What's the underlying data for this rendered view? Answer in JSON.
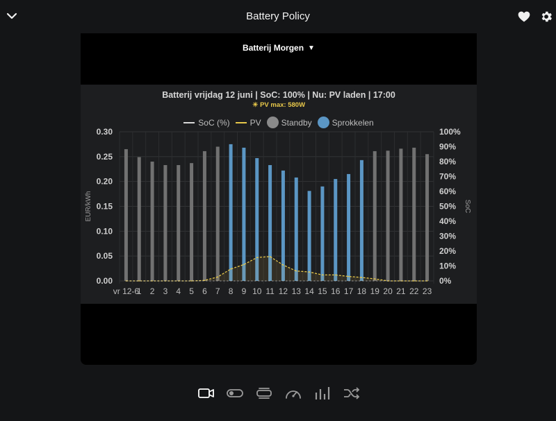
{
  "header": {
    "title": "Battery Policy"
  },
  "panel": {
    "dropdown_label": "Batterij Morgen",
    "chart_title": "Batterij vrijdag 12 juni  |  SoC: 100%  |  Nu: PV laden  |  17:00",
    "chart_subtitle": "☀ PV max: 580W"
  },
  "legend": [
    {
      "label": "SoC (%)",
      "kind": "line",
      "color": "#d9d9d9"
    },
    {
      "label": "PV",
      "kind": "line",
      "color": "#e8c84a"
    },
    {
      "label": "Standby",
      "kind": "dot",
      "color": "#8a8a8a"
    },
    {
      "label": "Sprokkelen",
      "kind": "dot",
      "color": "#5b96c4"
    }
  ],
  "colors": {
    "standby": "#717171",
    "sprokkelen": "#5b96c4",
    "pv": "#e8c84a",
    "soc": "#d9d9d9"
  },
  "chart_data": {
    "type": "bar",
    "categories": [
      "vr 12-6",
      "1",
      "2",
      "3",
      "4",
      "5",
      "6",
      "7",
      "8",
      "9",
      "10",
      "11",
      "12",
      "13",
      "14",
      "15",
      "16",
      "17",
      "18",
      "19",
      "20",
      "21",
      "22",
      "23"
    ],
    "series": [
      {
        "name": "Standby",
        "values": [
          0.265,
          0.249,
          0.24,
          0.233,
          0.233,
          0.237,
          0.261,
          0.27,
          null,
          null,
          null,
          null,
          null,
          null,
          null,
          null,
          null,
          null,
          null,
          0.261,
          0.262,
          0.266,
          0.268,
          0.255
        ]
      },
      {
        "name": "Sprokkelen",
        "values": [
          null,
          null,
          null,
          null,
          null,
          null,
          null,
          null,
          0.275,
          0.268,
          0.247,
          0.233,
          0.222,
          0.208,
          0.181,
          0.19,
          0.205,
          0.215,
          0.243,
          null,
          null,
          null,
          null,
          null
        ]
      },
      {
        "name": "PV",
        "values": [
          0,
          0,
          0,
          0,
          0,
          0,
          0.001,
          0.008,
          0.024,
          0.033,
          0.047,
          0.049,
          0.032,
          0.02,
          0.018,
          0.012,
          0.012,
          0.009,
          0.007,
          0.004,
          0,
          0,
          0,
          0
        ]
      },
      {
        "name": "SoC (%)",
        "values": [
          0,
          0,
          0,
          0,
          0,
          0,
          0,
          0,
          0,
          0,
          0,
          0,
          0,
          0,
          0,
          0,
          0,
          0,
          0,
          0,
          0,
          0,
          0,
          0
        ]
      }
    ],
    "ylabel": "EUR/kWh",
    "y2label": "SoC",
    "ylim": [
      0,
      0.3
    ],
    "y2lim": [
      0,
      100
    ],
    "yticks": [
      "0.00",
      "0.05",
      "0.10",
      "0.15",
      "0.20",
      "0.25",
      "0.30"
    ],
    "y2ticks": [
      "0%",
      "10%",
      "20%",
      "30%",
      "40%",
      "50%",
      "60%",
      "70%",
      "80%",
      "90%",
      "100%"
    ],
    "grid": true,
    "legend_position": "top"
  },
  "bottom_nav": [
    {
      "icon": "camera-icon",
      "active": true
    },
    {
      "icon": "toggle-icon",
      "active": false
    },
    {
      "icon": "lines-icon",
      "active": false
    },
    {
      "icon": "gauge-icon",
      "active": false
    },
    {
      "icon": "bar-chart-icon",
      "active": false
    },
    {
      "icon": "shuffle-icon",
      "active": false
    }
  ]
}
